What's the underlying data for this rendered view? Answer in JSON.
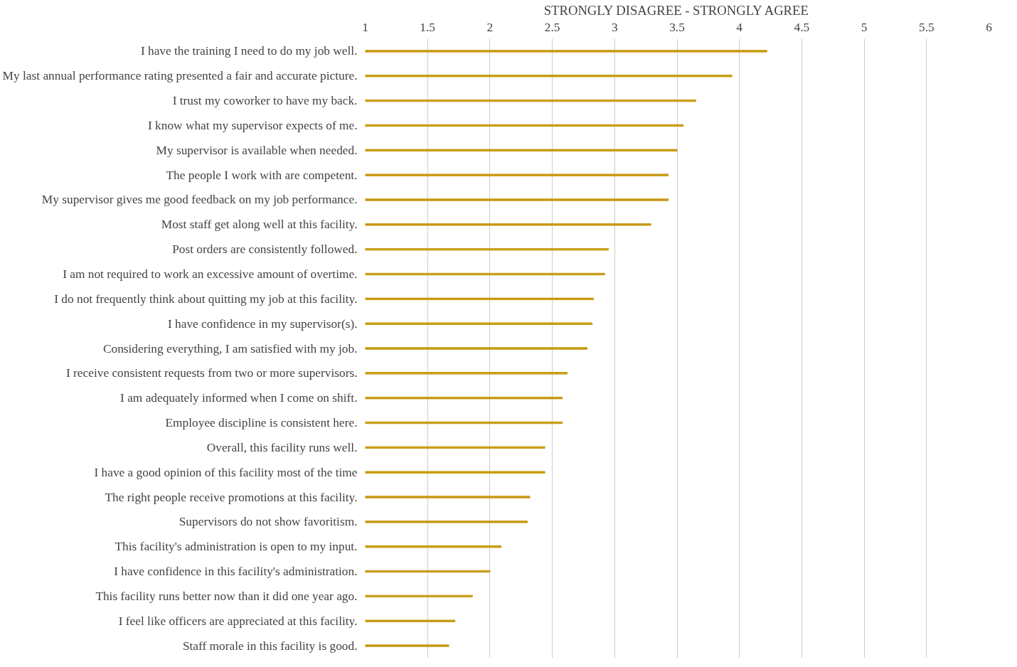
{
  "chart_data": {
    "type": "bar",
    "orientation": "horizontal",
    "xlabel": "STRONGLY DISAGREE - STRONGLY AGREE",
    "categories": [
      "I have the training I need to do my job well.",
      "My last annual performance rating presented a fair and accurate picture.",
      "I trust my coworker to have my back.",
      "I know what my supervisor expects of me.",
      "My supervisor is available when needed.",
      "The people I work with are competent.",
      "My supervisor gives me good feedback on my job performance.",
      "Most staff get along well at this facility.",
      "Post orders are consistently followed.",
      "I am not required to work an excessive amount of overtime.",
      "I do not frequently think about quitting my job at this facility.",
      "I have confidence in my supervisor(s).",
      "Considering everything, I am satisfied with my job.",
      "I receive consistent requests from two or more supervisors.",
      "I am adequately informed when I come on shift.",
      "Employee discipline is consistent here.",
      "Overall, this facility runs well.",
      "I have a good opinion of this facility most of the time",
      "The right people receive promotions at this facility.",
      "Supervisors do not show favoritism.",
      "This facility's administration is open to my input.",
      "I have confidence in this facility's administration.",
      "This facility runs better now than it did one year ago.",
      "I feel like officers are appreciated at this facility.",
      "Staff morale in this facility is good."
    ],
    "values": [
      4.22,
      3.94,
      3.65,
      3.55,
      3.5,
      3.43,
      3.43,
      3.29,
      2.95,
      2.92,
      2.83,
      2.82,
      2.78,
      2.62,
      2.58,
      2.58,
      2.44,
      2.44,
      2.32,
      2.3,
      2.09,
      2.0,
      1.86,
      1.72,
      1.67
    ],
    "color": "#c89b14",
    "xlim": [
      1,
      6
    ],
    "xticks": [
      1,
      1.5,
      2,
      2.5,
      3,
      3.5,
      4,
      4.5,
      5,
      5.5,
      6
    ],
    "grid": "x"
  }
}
